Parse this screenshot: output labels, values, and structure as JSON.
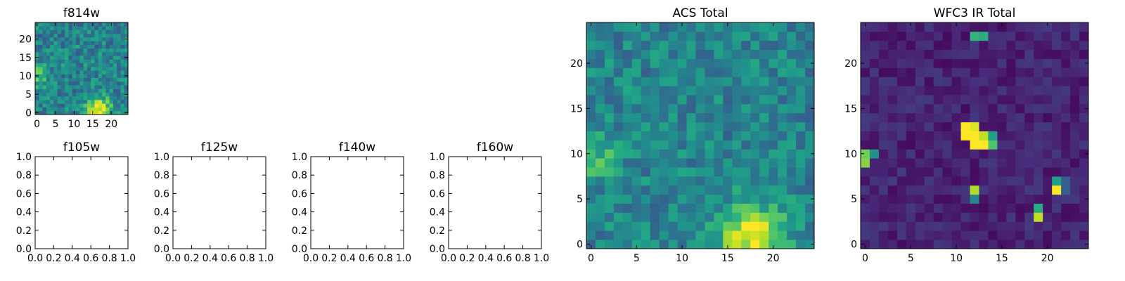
{
  "chart_data": [
    {
      "id": "f814w",
      "type": "heatmap",
      "title": "f814w",
      "xlabel": "",
      "ylabel": "",
      "grid": false,
      "colormap": "viridis",
      "size": 25,
      "xlim": [
        -0.5,
        24.5
      ],
      "ylim": [
        -0.5,
        24.5
      ],
      "xticks": [
        0,
        5,
        10,
        15,
        20
      ],
      "yticks": [
        0,
        5,
        10,
        15,
        20
      ],
      "tick_labels_x": [
        "0",
        "5",
        "10",
        "15",
        "20"
      ],
      "tick_labels_y": [
        "0",
        "5",
        "10",
        "15",
        "20"
      ],
      "value_range": [
        0,
        1
      ],
      "hotspots": [
        {
          "x": 16.5,
          "y": 1.0,
          "amp": 0.55,
          "sigma": 2.3
        },
        {
          "x": 0.3,
          "y": 10.0,
          "amp": 0.25,
          "sigma": 2.0
        }
      ],
      "base_level": 0.45,
      "noise_amplitude": 0.17,
      "seed": 814
    },
    {
      "id": "f105w",
      "type": "scatter",
      "title": "f105w",
      "xlabel": "",
      "ylabel": "",
      "grid": false,
      "xlim": [
        0,
        1
      ],
      "ylim": [
        0,
        1
      ],
      "tick_labels_x": [
        "0.0",
        "0.2",
        "0.4",
        "0.6",
        "0.8",
        "1.0"
      ],
      "tick_labels_y": [
        "0.0",
        "0.2",
        "0.4",
        "0.6",
        "0.8",
        "1.0"
      ],
      "points": []
    },
    {
      "id": "f125w",
      "type": "scatter",
      "title": "f125w",
      "xlabel": "",
      "ylabel": "",
      "grid": false,
      "xlim": [
        0,
        1
      ],
      "ylim": [
        0,
        1
      ],
      "tick_labels_x": [
        "0.0",
        "0.2",
        "0.4",
        "0.6",
        "0.8",
        "1.0"
      ],
      "tick_labels_y": [
        "0.0",
        "0.2",
        "0.4",
        "0.6",
        "0.8",
        "1.0"
      ],
      "points": []
    },
    {
      "id": "f140w",
      "type": "scatter",
      "title": "f140w",
      "xlabel": "",
      "ylabel": "",
      "grid": false,
      "xlim": [
        0,
        1
      ],
      "ylim": [
        0,
        1
      ],
      "tick_labels_x": [
        "0.0",
        "0.2",
        "0.4",
        "0.6",
        "0.8",
        "1.0"
      ],
      "tick_labels_y": [
        "0.0",
        "0.2",
        "0.4",
        "0.6",
        "0.8",
        "1.0"
      ],
      "points": []
    },
    {
      "id": "f160w",
      "type": "scatter",
      "title": "f160w",
      "xlabel": "",
      "ylabel": "",
      "grid": false,
      "xlim": [
        0,
        1
      ],
      "ylim": [
        0,
        1
      ],
      "tick_labels_x": [
        "0.0",
        "0.2",
        "0.4",
        "0.6",
        "0.8",
        "1.0"
      ],
      "tick_labels_y": [
        "0.0",
        "0.2",
        "0.4",
        "0.6",
        "0.8",
        "1.0"
      ],
      "points": []
    },
    {
      "id": "acs_total",
      "type": "heatmap",
      "title": "ACS Total",
      "xlabel": "",
      "ylabel": "",
      "grid": false,
      "colormap": "viridis",
      "size": 25,
      "xlim": [
        -0.5,
        24.5
      ],
      "ylim": [
        -0.5,
        24.5
      ],
      "xticks": [
        0,
        5,
        10,
        15,
        20
      ],
      "yticks": [
        0,
        5,
        10,
        15,
        20
      ],
      "tick_labels_x": [
        "0",
        "5",
        "10",
        "15",
        "20"
      ],
      "tick_labels_y": [
        "0",
        "5",
        "10",
        "15",
        "20"
      ],
      "value_range": [
        0,
        1
      ],
      "hotspots": [
        {
          "x": 17.5,
          "y": 1.0,
          "amp": 0.55,
          "sigma": 2.4
        },
        {
          "x": 0.2,
          "y": 10.0,
          "amp": 0.22,
          "sigma": 2.0
        }
      ],
      "base_level": 0.45,
      "noise_amplitude": 0.15,
      "seed": 2024
    },
    {
      "id": "wfc3_ir_total",
      "type": "heatmap",
      "title": "WFC3 IR Total",
      "xlabel": "",
      "ylabel": "",
      "grid": false,
      "colormap": "viridis",
      "size": 25,
      "xlim": [
        -0.5,
        24.5
      ],
      "ylim": [
        -0.5,
        24.5
      ],
      "xticks": [
        0,
        5,
        10,
        15,
        20
      ],
      "yticks": [
        0,
        5,
        10,
        15,
        20
      ],
      "tick_labels_x": [
        "0",
        "5",
        "10",
        "15",
        "20"
      ],
      "tick_labels_y": [
        "0",
        "5",
        "10",
        "15",
        "20"
      ],
      "value_range": [
        0,
        1
      ],
      "base_level": 0.1,
      "noise_amplitude": 0.07,
      "seed": 160,
      "bright_pixels": [
        {
          "x": 11,
          "y": 13,
          "v": 1.0
        },
        {
          "x": 12,
          "y": 13,
          "v": 0.95
        },
        {
          "x": 11,
          "y": 12,
          "v": 1.0
        },
        {
          "x": 12,
          "y": 12,
          "v": 1.0
        },
        {
          "x": 13,
          "y": 12,
          "v": 0.9
        },
        {
          "x": 12,
          "y": 11,
          "v": 1.0
        },
        {
          "x": 13,
          "y": 11,
          "v": 1.0
        },
        {
          "x": 14,
          "y": 12,
          "v": 0.55
        },
        {
          "x": 14,
          "y": 11,
          "v": 0.72
        },
        {
          "x": 0,
          "y": 10,
          "v": 0.78
        },
        {
          "x": 0,
          "y": 9,
          "v": 0.82
        },
        {
          "x": 1,
          "y": 10,
          "v": 0.5
        },
        {
          "x": 12,
          "y": 23,
          "v": 0.65
        },
        {
          "x": 13,
          "y": 23,
          "v": 0.62
        },
        {
          "x": 12,
          "y": 6,
          "v": 0.88
        },
        {
          "x": 12,
          "y": 5,
          "v": 0.45
        },
        {
          "x": 21,
          "y": 6,
          "v": 1.0
        },
        {
          "x": 21,
          "y": 7,
          "v": 0.55
        },
        {
          "x": 22,
          "y": 7,
          "v": 0.3
        },
        {
          "x": 22,
          "y": 6,
          "v": 0.3
        },
        {
          "x": 19,
          "y": 4,
          "v": 0.62
        },
        {
          "x": 19,
          "y": 3,
          "v": 0.9
        }
      ]
    }
  ]
}
